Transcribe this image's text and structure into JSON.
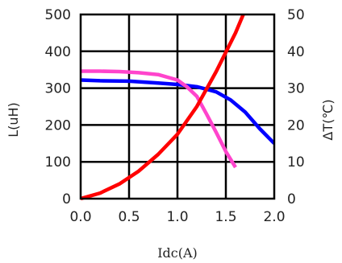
{
  "chart_data": {
    "type": "line",
    "x_label": "Idc(A)",
    "y_left_label": "L(uH)",
    "y_right_label": "ΔT(℃)",
    "x_ticks": [
      "0.0",
      "0.5",
      "1.0",
      "1.5",
      "2.0"
    ],
    "y_left_ticks": [
      "0",
      "100",
      "200",
      "300",
      "400",
      "500"
    ],
    "y_right_ticks": [
      "0",
      "10",
      "20",
      "30",
      "40",
      "50"
    ],
    "xlim": [
      0,
      2.0
    ],
    "ylim_left": [
      0,
      500
    ],
    "ylim_right": [
      0,
      50
    ],
    "grid": true,
    "series": [
      {
        "color": "#0000ff",
        "axis": "left",
        "points": [
          [
            0,
            322
          ],
          [
            0.2,
            320
          ],
          [
            0.5,
            319
          ],
          [
            0.8,
            314
          ],
          [
            1.0,
            310
          ],
          [
            1.2,
            304
          ],
          [
            1.4,
            290
          ],
          [
            1.55,
            268
          ],
          [
            1.7,
            235
          ],
          [
            1.85,
            190
          ],
          [
            2.0,
            150
          ]
        ]
      },
      {
        "color": "#ff44cc",
        "axis": "left",
        "points": [
          [
            0,
            346
          ],
          [
            0.2,
            346
          ],
          [
            0.4,
            345
          ],
          [
            0.6,
            342
          ],
          [
            0.8,
            337
          ],
          [
            1.0,
            322
          ],
          [
            1.1,
            303
          ],
          [
            1.2,
            278
          ],
          [
            1.3,
            230
          ],
          [
            1.4,
            180
          ],
          [
            1.5,
            128
          ],
          [
            1.6,
            85
          ]
        ]
      },
      {
        "color": "#ff0000",
        "axis": "right",
        "points": [
          [
            0,
            0
          ],
          [
            0.2,
            1.5
          ],
          [
            0.4,
            4
          ],
          [
            0.6,
            7.5
          ],
          [
            0.8,
            12
          ],
          [
            1.0,
            17.5
          ],
          [
            1.2,
            25
          ],
          [
            1.4,
            34.5
          ],
          [
            1.6,
            45
          ],
          [
            1.68,
            50
          ]
        ]
      }
    ]
  }
}
